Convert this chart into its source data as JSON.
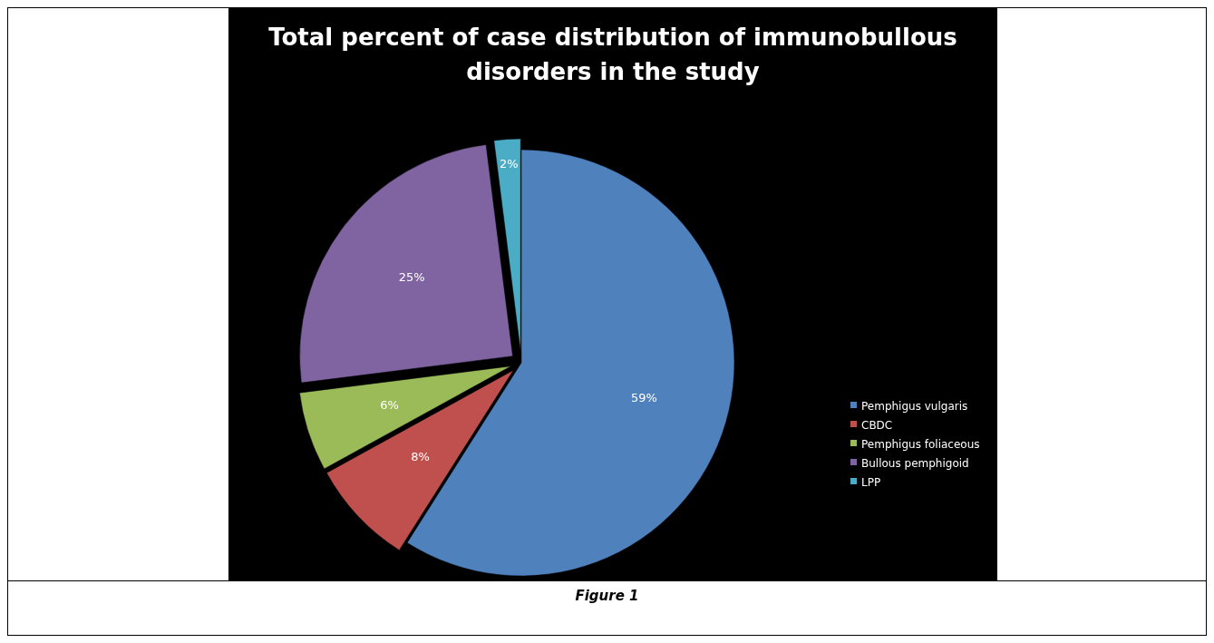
{
  "chart_data": {
    "type": "pie",
    "title": "Total percent of case distribution of immunobullous disorders in the study",
    "categories": [
      "Pemphigus vulgaris",
      "CBDC",
      "Pemphigus foliaceous",
      "Bullous pemphigoid",
      "LPP"
    ],
    "values": [
      59,
      8,
      6,
      25,
      2
    ],
    "colors": [
      "#4f81bd",
      "#c0504d",
      "#9bbb59",
      "#8064a2",
      "#4bacc6"
    ],
    "value_labels": [
      "59%",
      "8%",
      "6%",
      "25%",
      "2%"
    ],
    "legend": "right",
    "annotations": [
      "Figure 1"
    ]
  }
}
